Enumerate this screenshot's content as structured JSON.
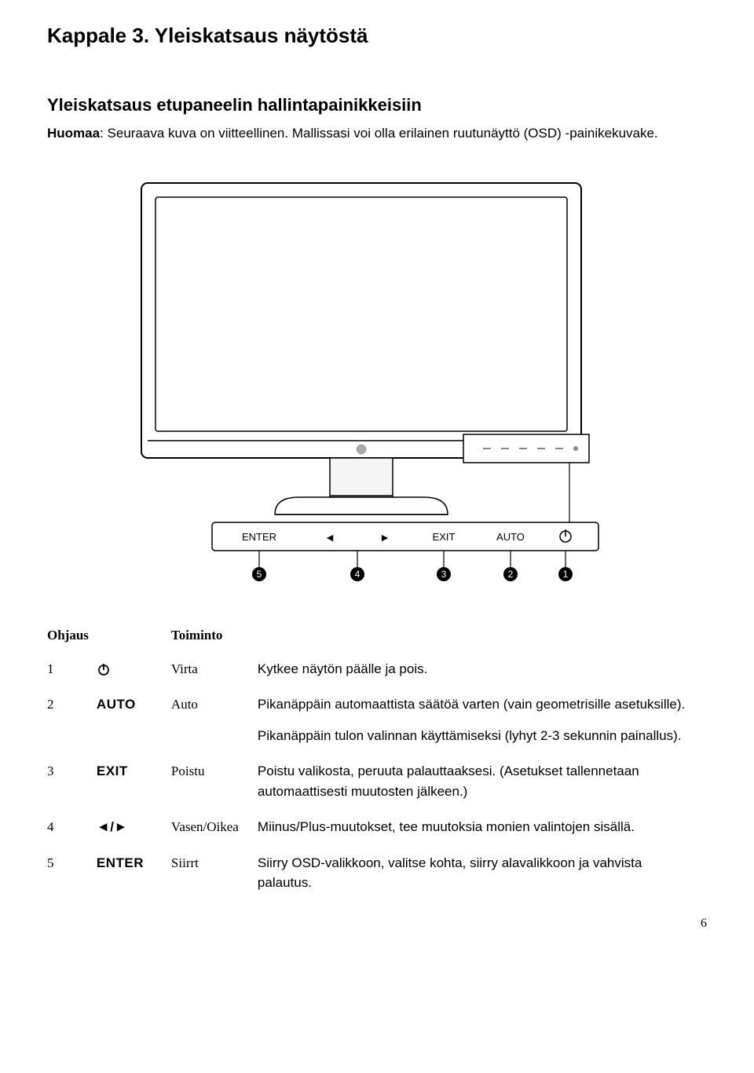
{
  "heading": "Kappale 3. Yleiskatsaus näytöstä",
  "subheading": "Yleiskatsaus etupaneelin hallintapainikkeisiin",
  "note_label": "Huomaa",
  "note_text": ": Seuraava kuva on viitteellinen. Mallissasi voi olla erilainen ruutunäyttö (OSD) -painikekuvake.",
  "diagram": {
    "type": "diagram",
    "stroke_color": "#000000",
    "fill_color": "#ffffff",
    "light_gray": "#e6e6e6",
    "button_labels": [
      "ENTER",
      "◄",
      "►",
      "EXIT",
      "AUTO",
      "⏻"
    ],
    "callouts": [
      "5",
      "4",
      "3",
      "2",
      "1"
    ]
  },
  "table": {
    "headers": {
      "ohjaus": "Ohjaus",
      "toiminto": "Toiminto"
    },
    "rows": [
      {
        "num": "1",
        "icon_type": "power",
        "icon_text": "",
        "name": "Virta",
        "desc": [
          "Kytkee näytön päälle ja pois."
        ]
      },
      {
        "num": "2",
        "icon_type": "text",
        "icon_text": "AUTO",
        "name": "Auto",
        "desc": [
          "Pikanäppäin automaattista säätöä varten (vain geometrisille asetuksille).",
          "Pikanäppäin tulon valinnan käyttämiseksi (lyhyt 2-3 sekunnin painallus)."
        ]
      },
      {
        "num": "3",
        "icon_type": "text",
        "icon_text": "EXIT",
        "name": "Poistu",
        "desc": [
          "Poistu valikosta, peruuta palauttaaksesi. (Asetukset tallennetaan automaattisesti muutosten jälkeen.)"
        ]
      },
      {
        "num": "4",
        "icon_type": "text",
        "icon_text": "◄/►",
        "name": "Vasen/Oikea",
        "desc": [
          "Miinus/Plus-muutokset, tee muutoksia monien valintojen sisällä."
        ]
      },
      {
        "num": "5",
        "icon_type": "text",
        "icon_text": "ENTER",
        "name": "Siirrt",
        "desc": [
          "Siirry OSD-valikkoon, valitse kohta, siirry alavalikkoon ja vahvista palautus."
        ]
      }
    ]
  },
  "page_number": "6",
  "colors": {
    "text": "#000000",
    "background": "#ffffff"
  }
}
